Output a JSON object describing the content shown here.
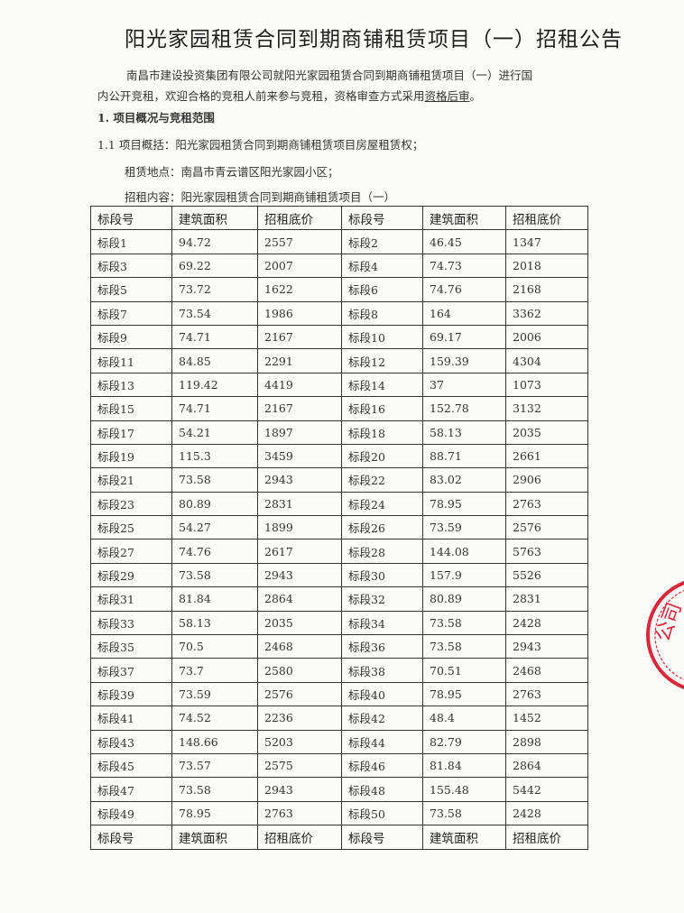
{
  "document": {
    "title": "阳光家园租赁合同到期商铺租赁项目（一）招租公告",
    "intro_line1": "南昌市建设投资集团有限公司就阳光家园租赁合同到期商铺租赁项目（一）进行国",
    "intro_line2": "内公开竞租，欢迎合格的竞租人前来参与竞租，资格审查方式采用",
    "intro_underlined": "资格后审",
    "intro_end": "。",
    "section1": "1. 项目概况与竞租范围",
    "item_1_1": "1.1 项目概括：阳光家园租赁合同到期商铺租赁项目房屋租赁权；",
    "location": "租赁地点：南昌市青云谱区阳光家园小区；",
    "content": "招租内容：阳光家园租赁合同到期商铺租赁项目（一）",
    "seal_color": "#d8283a"
  },
  "table": {
    "headers": [
      "标段号",
      "建筑面积",
      "招租底价",
      "标段号",
      "建筑面积",
      "招租底价"
    ],
    "rows": [
      [
        "标段1",
        "94.72",
        "2557",
        "标段2",
        "46.45",
        "1347"
      ],
      [
        "标段3",
        "69.22",
        "2007",
        "标段4",
        "74.73",
        "2018"
      ],
      [
        "标段5",
        "73.72",
        "1622",
        "标段6",
        "74.76",
        "2168"
      ],
      [
        "标段7",
        "73.54",
        "1986",
        "标段8",
        "164",
        "3362"
      ],
      [
        "标段9",
        "74.71",
        "2167",
        "标段10",
        "69.17",
        "2006"
      ],
      [
        "标段11",
        "84.85",
        "2291",
        "标段12",
        "159.39",
        "4304"
      ],
      [
        "标段13",
        "119.42",
        "4419",
        "标段14",
        "37",
        "1073"
      ],
      [
        "标段15",
        "74.71",
        "2167",
        "标段16",
        "152.78",
        "3132"
      ],
      [
        "标段17",
        "54.21",
        "1897",
        "标段18",
        "58.13",
        "2035"
      ],
      [
        "标段19",
        "115.3",
        "3459",
        "标段20",
        "88.71",
        "2661"
      ],
      [
        "标段21",
        "73.58",
        "2943",
        "标段22",
        "83.02",
        "2906"
      ],
      [
        "标段23",
        "80.89",
        "2831",
        "标段24",
        "78.95",
        "2763"
      ],
      [
        "标段25",
        "54.27",
        "1899",
        "标段26",
        "73.59",
        "2576"
      ],
      [
        "标段27",
        "74.76",
        "2617",
        "标段28",
        "144.08",
        "5763"
      ],
      [
        "标段29",
        "73.58",
        "2943",
        "标段30",
        "157.9",
        "5526"
      ],
      [
        "标段31",
        "81.84",
        "2864",
        "标段32",
        "80.89",
        "2831"
      ],
      [
        "标段33",
        "58.13",
        "2035",
        "标段34",
        "73.58",
        "2428"
      ],
      [
        "标段35",
        "70.5",
        "2468",
        "标段36",
        "73.58",
        "2943"
      ],
      [
        "标段37",
        "73.7",
        "2580",
        "标段38",
        "70.51",
        "2468"
      ],
      [
        "标段39",
        "73.59",
        "2576",
        "标段40",
        "78.95",
        "2763"
      ],
      [
        "标段41",
        "74.52",
        "2236",
        "标段42",
        "48.4",
        "1452"
      ],
      [
        "标段43",
        "148.66",
        "5203",
        "标段44",
        "82.79",
        "2898"
      ],
      [
        "标段45",
        "73.57",
        "2575",
        "标段46",
        "81.84",
        "2864"
      ],
      [
        "标段47",
        "73.58",
        "2943",
        "标段48",
        "155.48",
        "5442"
      ],
      [
        "标段49",
        "78.95",
        "2763",
        "标段50",
        "73.58",
        "2428"
      ]
    ],
    "footer": [
      "标段号",
      "建筑面积",
      "招租底价",
      "标段号",
      "建筑面积",
      "招租底价"
    ]
  }
}
